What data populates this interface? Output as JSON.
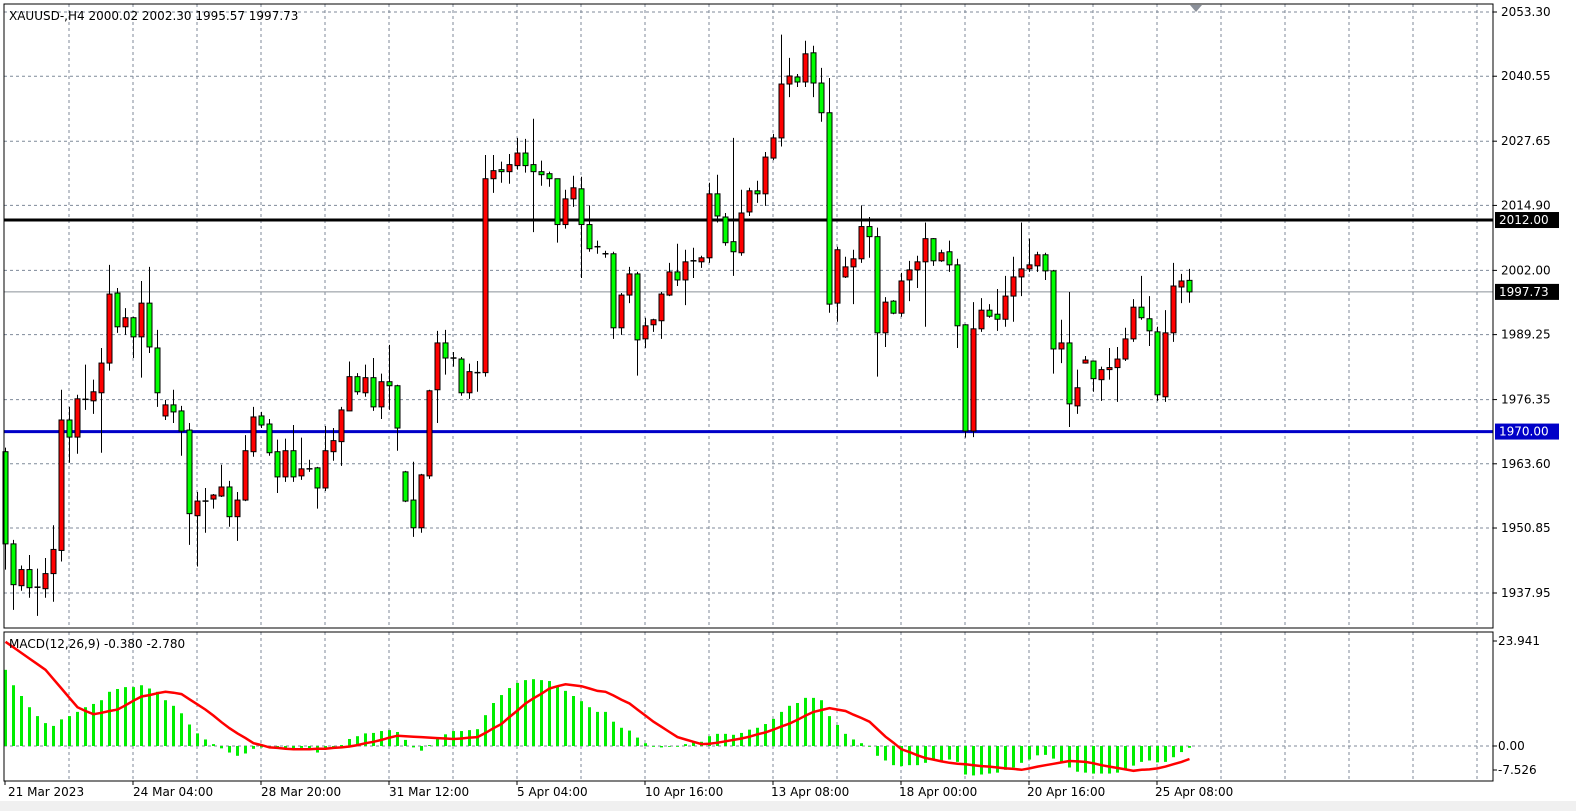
{
  "header": {
    "symbol_line": "XAUUSD-,H4  2000.02 2002.30 1995.57 1997.73"
  },
  "colors": {
    "bull_candle": "#ff0000",
    "bear_candle": "#00ff00",
    "support_line": "#0000c8",
    "resistance_line": "#000000",
    "macd_histogram": "#00ee00",
    "macd_signal": "#ff0000",
    "grid": "#7f8a99"
  },
  "chart_data": [
    {
      "type": "candlestick",
      "symbol": "XAUUSD-",
      "timeframe": "H4",
      "ohlc_header": {
        "open": 2000.02,
        "high": 2002.3,
        "low": 1995.57,
        "close": 1997.73
      },
      "ylim": [
        1934.0,
        2055.0
      ],
      "grid": true,
      "y_ticks": [
        "2053.30",
        "2040.55",
        "2027.65",
        "2014.90",
        "2002.00",
        "1989.25",
        "1976.35",
        "1963.60",
        "1950.85",
        "1937.95"
      ],
      "x_tick_labels": [
        "21 Mar 2023",
        "24 Mar 04:00",
        "28 Mar 20:00",
        "31 Mar 12:00",
        "5 Apr 04:00",
        "10 Apr 16:00",
        "13 Apr 08:00",
        "18 Apr 00:00",
        "20 Apr 16:00",
        "25 Apr 08:00"
      ],
      "horizontal_lines": [
        {
          "price": 2012.0,
          "label": "2012.00",
          "color": "#000000"
        },
        {
          "price": 1970.0,
          "label": "1970.00",
          "color": "#0000c8"
        }
      ],
      "current_price": {
        "price": 1997.73,
        "label": "1997.73"
      },
      "candles": [
        [
          1966.0,
          1966.8,
          1942.6,
          1947.7
        ],
        [
          1947.7,
          1948.5,
          1934.6,
          1939.6
        ],
        [
          1939.4,
          1943.4,
          1938.4,
          1942.6
        ],
        [
          1942.6,
          1945.5,
          1937.0,
          1939.0
        ],
        [
          1939.1,
          1942.8,
          1933.4,
          1939.0
        ],
        [
          1938.8,
          1944.9,
          1937.0,
          1941.8
        ],
        [
          1941.8,
          1951.4,
          1936.2,
          1946.6
        ],
        [
          1946.4,
          1978.3,
          1944.2,
          1972.3
        ],
        [
          1972.3,
          1974.9,
          1963.8,
          1968.9
        ],
        [
          1968.9,
          1977.3,
          1965.6,
          1976.5
        ],
        [
          1976.3,
          1983.3,
          1974.3,
          1976.4
        ],
        [
          1976.1,
          1980.3,
          1973.5,
          1977.9
        ],
        [
          1977.7,
          1986.6,
          1965.8,
          1983.6
        ],
        [
          1983.6,
          2003.1,
          1982.1,
          1997.3
        ],
        [
          1997.5,
          1998.5,
          1989.6,
          1990.8
        ],
        [
          1990.8,
          1994.5,
          1989.2,
          1992.6
        ],
        [
          1992.6,
          1992.8,
          1984.6,
          1988.8
        ],
        [
          1988.8,
          1999.9,
          1980.7,
          1995.5
        ],
        [
          1995.5,
          2002.7,
          1985.6,
          1986.8
        ],
        [
          1986.6,
          1990.2,
          1974.9,
          1977.7
        ],
        [
          1973.1,
          1976.3,
          1972.3,
          1975.3
        ],
        [
          1975.3,
          1978.3,
          1971.7,
          1973.9
        ],
        [
          1974.1,
          1975.1,
          1965.2,
          1970.1
        ],
        [
          1970.3,
          1971.7,
          1947.5,
          1953.7
        ],
        [
          1953.3,
          1958.0,
          1943.2,
          1956.2
        ],
        [
          1956.2,
          1958.8,
          1949.9,
          1956.1
        ],
        [
          1956.6,
          1957.6,
          1954.7,
          1957.4
        ],
        [
          1957.2,
          1963.4,
          1957.0,
          1959.0
        ],
        [
          1959.0,
          1960.2,
          1951.1,
          1953.1
        ],
        [
          1953.1,
          1958.0,
          1948.3,
          1956.4
        ],
        [
          1956.4,
          1969.3,
          1956.2,
          1966.2
        ],
        [
          1966.0,
          1974.9,
          1965.0,
          1972.9
        ],
        [
          1973.1,
          1973.9,
          1970.7,
          1971.3
        ],
        [
          1971.5,
          1972.5,
          1965.2,
          1965.8
        ],
        [
          1966.0,
          1968.4,
          1957.8,
          1961.0
        ],
        [
          1961.0,
          1968.6,
          1960.0,
          1966.2
        ],
        [
          1966.2,
          1971.3,
          1960.0,
          1961.0
        ],
        [
          1961.2,
          1968.8,
          1960.4,
          1962.6
        ],
        [
          1962.6,
          1964.4,
          1962.0,
          1962.5
        ],
        [
          1962.8,
          1963.0,
          1954.7,
          1958.8
        ],
        [
          1958.8,
          1971.1,
          1958.2,
          1966.2
        ],
        [
          1966.0,
          1970.7,
          1964.2,
          1968.2
        ],
        [
          1968.0,
          1974.9,
          1963.2,
          1974.3
        ],
        [
          1974.1,
          1983.9,
          1974.1,
          1980.9
        ],
        [
          1980.9,
          1981.6,
          1977.3,
          1977.9
        ],
        [
          1977.7,
          1983.3,
          1976.9,
          1980.7
        ],
        [
          1980.7,
          1984.6,
          1974.1,
          1974.9
        ],
        [
          1974.9,
          1981.5,
          1972.5,
          1979.9
        ],
        [
          1979.9,
          1987.2,
          1974.3,
          1979.1
        ],
        [
          1979.1,
          1979.3,
          1966.2,
          1970.7
        ],
        [
          1962.0,
          1962.2,
          1956.0,
          1956.2
        ],
        [
          1956.4,
          1964.0,
          1949.1,
          1950.9
        ],
        [
          1950.9,
          1961.6,
          1949.9,
          1961.4
        ],
        [
          1961.2,
          1978.3,
          1960.6,
          1978.1
        ],
        [
          1978.3,
          1990.0,
          1971.7,
          1987.6
        ],
        [
          1987.6,
          1990.2,
          1981.3,
          1984.6
        ],
        [
          1984.6,
          1985.8,
          1982.9,
          1984.5
        ],
        [
          1984.4,
          1984.8,
          1977.1,
          1977.7
        ],
        [
          1977.7,
          1983.5,
          1976.5,
          1981.9
        ],
        [
          1981.7,
          1984.0,
          1977.9,
          1981.6
        ],
        [
          1981.7,
          2024.9,
          1980.9,
          2020.2
        ],
        [
          2020.2,
          2024.9,
          2017.4,
          2021.8
        ],
        [
          2022.0,
          2023.6,
          2019.4,
          2021.6
        ],
        [
          2021.6,
          2025.1,
          2019.2,
          2023.0
        ],
        [
          2022.8,
          2028.3,
          2022.0,
          2025.3
        ],
        [
          2025.3,
          2028.1,
          2021.4,
          2022.8
        ],
        [
          2023.0,
          2032.1,
          2009.6,
          2021.6
        ],
        [
          2021.6,
          2023.8,
          2018.8,
          2021.0
        ],
        [
          2021.2,
          2021.6,
          2018.6,
          2020.2
        ],
        [
          2020.2,
          2020.2,
          2007.5,
          2011.1
        ],
        [
          2011.1,
          2018.0,
          2010.3,
          2016.2
        ],
        [
          2016.2,
          2020.8,
          2014.6,
          2018.4
        ],
        [
          2018.2,
          2020.6,
          2000.5,
          2011.1
        ],
        [
          2011.1,
          2014.9,
          2005.7,
          2006.3
        ],
        [
          2006.7,
          2007.9,
          2005.3,
          2006.6
        ],
        [
          2005.3,
          2005.9,
          2004.5,
          2005.2
        ],
        [
          2005.3,
          2005.7,
          1988.4,
          1990.6
        ],
        [
          1990.6,
          1997.5,
          1989.2,
          1997.1
        ],
        [
          1997.1,
          2002.7,
          1995.5,
          2001.3
        ],
        [
          2001.3,
          2001.7,
          1981.1,
          1988.2
        ],
        [
          1988.4,
          1992.6,
          1986.6,
          1991.0
        ],
        [
          1991.2,
          1992.4,
          1989.8,
          1992.2
        ],
        [
          1992.0,
          1997.7,
          1988.4,
          1997.3
        ],
        [
          1997.1,
          2003.5,
          1996.9,
          2001.7
        ],
        [
          2001.7,
          2007.3,
          1998.9,
          2000.1
        ],
        [
          2000.1,
          2006.1,
          1995.1,
          2003.7
        ],
        [
          2003.9,
          2006.5,
          2000.5,
          2003.8
        ],
        [
          2003.7,
          2004.9,
          2002.5,
          2004.5
        ],
        [
          2004.5,
          2019.4,
          2003.5,
          2017.2
        ],
        [
          2017.2,
          2021.0,
          2011.5,
          2012.8
        ],
        [
          2012.6,
          2013.4,
          2006.9,
          2007.5
        ],
        [
          2007.7,
          2028.3,
          2000.9,
          2005.7
        ],
        [
          2005.5,
          2018.0,
          2004.9,
          2013.4
        ],
        [
          2013.6,
          2018.4,
          2012.8,
          2017.8
        ],
        [
          2017.8,
          2019.8,
          2015.4,
          2017.2
        ],
        [
          2017.2,
          2025.5,
          2014.8,
          2024.5
        ],
        [
          2024.3,
          2029.1,
          2023.9,
          2028.3
        ],
        [
          2028.3,
          2048.8,
          2026.6,
          2039.0
        ],
        [
          2039.0,
          2044.2,
          2036.4,
          2040.6
        ],
        [
          2040.4,
          2041.0,
          2038.4,
          2039.4
        ],
        [
          2039.4,
          2047.6,
          2038.4,
          2045.0
        ],
        [
          2045.2,
          2046.6,
          2036.4,
          2039.2
        ],
        [
          2039.2,
          2042.2,
          2031.5,
          2033.3
        ],
        [
          2033.3,
          2040.2,
          1993.6,
          1995.3
        ],
        [
          1995.5,
          2006.7,
          1991.8,
          2006.1
        ],
        [
          2000.7,
          2004.7,
          2000.5,
          2002.7
        ],
        [
          2002.7,
          2006.1,
          1995.3,
          2004.3
        ],
        [
          2004.3,
          2014.9,
          2003.5,
          2010.7
        ],
        [
          2010.7,
          2012.6,
          2004.5,
          2008.7
        ],
        [
          2008.7,
          2010.5,
          1980.9,
          1989.6
        ],
        [
          1989.6,
          1996.7,
          1986.8,
          1995.7
        ],
        [
          1995.9,
          1996.1,
          1993.3,
          1993.5
        ],
        [
          1993.5,
          2001.5,
          1992.8,
          1999.9
        ],
        [
          2000.1,
          2003.9,
          1995.9,
          2002.1
        ],
        [
          2002.1,
          2004.9,
          1998.5,
          2003.7
        ],
        [
          2003.7,
          2011.5,
          1990.8,
          2008.3
        ],
        [
          2008.3,
          2008.4,
          2002.9,
          2003.9
        ],
        [
          2003.9,
          2006.1,
          2003.7,
          2005.5
        ],
        [
          2005.7,
          2007.9,
          2001.7,
          2003.1
        ],
        [
          2003.1,
          2004.3,
          1986.6,
          1991.0
        ],
        [
          1991.2,
          1991.3,
          1968.8,
          1970.1
        ],
        [
          1970.1,
          1995.7,
          1968.9,
          1990.4
        ],
        [
          1990.4,
          1996.5,
          1989.8,
          1994.1
        ],
        [
          1994.1,
          1995.3,
          1992.6,
          1992.9
        ],
        [
          1993.3,
          1998.3,
          1990.0,
          1992.3
        ],
        [
          1992.3,
          2000.9,
          1990.8,
          1996.9
        ],
        [
          1996.9,
          2004.7,
          1991.8,
          2000.7
        ],
        [
          2000.7,
          2011.5,
          1996.9,
          2002.3
        ],
        [
          2002.3,
          2008.3,
          2001.7,
          2003.1
        ],
        [
          2002.9,
          2005.7,
          2001.7,
          2005.1
        ],
        [
          2005.1,
          2005.5,
          2000.1,
          2001.9
        ],
        [
          2001.9,
          2002.1,
          1981.5,
          1986.4
        ],
        [
          1986.4,
          1992.2,
          1983.6,
          1987.6
        ],
        [
          1987.6,
          1997.7,
          1970.9,
          1975.5
        ],
        [
          1975.1,
          1982.3,
          1973.5,
          1978.7
        ],
        [
          1983.6,
          1985.0,
          1983.5,
          1984.2
        ],
        [
          1984.0,
          1984.1,
          1977.9,
          1980.5
        ],
        [
          1980.3,
          1982.9,
          1976.1,
          1982.3
        ],
        [
          1982.3,
          1986.6,
          1980.3,
          1982.7
        ],
        [
          1982.7,
          1986.8,
          1975.9,
          1984.4
        ],
        [
          1984.4,
          1990.6,
          1984.0,
          1988.4
        ],
        [
          1988.4,
          1996.3,
          1987.8,
          1994.7
        ],
        [
          1994.7,
          2000.9,
          1992.2,
          1992.6
        ],
        [
          1992.4,
          1996.9,
          1987.0,
          1990.0
        ],
        [
          1989.8,
          1990.8,
          1976.1,
          1977.3
        ],
        [
          1976.9,
          1994.1,
          1975.9,
          1989.6
        ],
        [
          1989.6,
          2003.5,
          1987.8,
          1998.9
        ],
        [
          1998.7,
          2001.3,
          1995.5,
          1999.9
        ],
        [
          2000.02,
          2002.3,
          1995.57,
          1997.73
        ]
      ]
    },
    {
      "type": "bar",
      "indicator": "MACD(12,26,9) -0.380 -2.780",
      "ylim": [
        -7.526,
        23.941
      ],
      "y_ticks": [
        "23.941",
        "0.00",
        "-7.526"
      ],
      "grid": true,
      "histogram": [
        16.3,
        13.0,
        10.7,
        8.3,
        6.4,
        4.9,
        4.3,
        5.7,
        6.4,
        7.3,
        8.3,
        9.0,
        9.8,
        11.6,
        12.2,
        12.6,
        12.6,
        13.0,
        12.3,
        11.6,
        9.8,
        8.6,
        7.0,
        4.6,
        2.7,
        1.4,
        0.4,
        -0.5,
        -1.4,
        -2.1,
        -1.6,
        -0.6,
        -0.3,
        -0.4,
        -0.6,
        -0.6,
        -0.6,
        -0.4,
        -0.6,
        -1.4,
        -0.6,
        -0.3,
        0.2,
        1.5,
        2.1,
        2.7,
        2.8,
        3.2,
        3.4,
        3.0,
        1.3,
        -0.3,
        -1.0,
        0.2,
        1.5,
        2.5,
        3.2,
        3.2,
        3.4,
        3.6,
        6.6,
        9.2,
        10.9,
        12.4,
        13.5,
        14.1,
        14.3,
        14.1,
        13.9,
        12.8,
        11.8,
        10.7,
        9.6,
        8.3,
        7.3,
        7.3,
        5.2,
        3.9,
        3.3,
        1.8,
        0.6,
        -0.1,
        -0.3,
        -0.1,
        -0.1,
        0.4,
        0.8,
        0.9,
        2.1,
        2.6,
        2.6,
        2.4,
        2.8,
        3.5,
        3.9,
        4.7,
        5.8,
        7.3,
        8.6,
        9.2,
        10.3,
        10.3,
        9.8,
        6.4,
        4.5,
        2.6,
        1.4,
        0.6,
        0.0,
        -2.1,
        -3.1,
        -4.1,
        -4.3,
        -4.1,
        -4.1,
        -3.6,
        -3.1,
        -3.1,
        -2.9,
        -3.4,
        -6.1,
        -6.3,
        -6.1,
        -5.9,
        -5.7,
        -5.1,
        -4.6,
        -3.6,
        -2.9,
        -2.0,
        -1.9,
        -2.7,
        -3.4,
        -4.6,
        -5.5,
        -5.7,
        -5.9,
        -5.9,
        -5.9,
        -5.7,
        -5.1,
        -4.2,
        -3.4,
        -3.1,
        -3.5,
        -3.4,
        -2.4,
        -1.3,
        -0.38
      ],
      "signal": [
        22.3,
        21.1,
        19.9,
        18.7,
        17.5,
        16.3,
        14.3,
        12.3,
        10.3,
        8.3,
        7.5,
        6.8,
        7.1,
        7.5,
        7.8,
        8.7,
        9.7,
        10.6,
        10.9,
        11.3,
        11.6,
        11.4,
        11.1,
        10.0,
        8.9,
        7.8,
        6.5,
        5.1,
        3.8,
        2.7,
        1.7,
        0.6,
        0.2,
        -0.3,
        -0.4,
        -0.6,
        -0.7,
        -0.7,
        -0.7,
        -0.6,
        -0.6,
        -0.4,
        -0.3,
        -0.1,
        0.2,
        0.6,
        0.9,
        1.3,
        1.8,
        2.2,
        2.1,
        2.0,
        1.9,
        1.8,
        1.7,
        1.6,
        1.5,
        1.6,
        1.8,
        1.9,
        2.8,
        3.8,
        4.7,
        6.2,
        7.6,
        9.1,
        10.2,
        11.2,
        12.3,
        12.8,
        13.2,
        13.0,
        12.8,
        12.3,
        11.8,
        11.6,
        10.8,
        9.9,
        9.1,
        7.8,
        6.5,
        5.2,
        4.1,
        3.0,
        1.9,
        1.4,
        0.9,
        0.4,
        0.5,
        0.7,
        1.0,
        1.3,
        1.6,
        2.0,
        2.5,
        2.9,
        3.5,
        4.2,
        4.8,
        5.6,
        6.5,
        7.3,
        7.7,
        8.1,
        7.8,
        7.5,
        6.7,
        6.0,
        5.2,
        3.6,
        2.0,
        0.7,
        -0.7,
        -1.3,
        -2.0,
        -2.6,
        -2.9,
        -3.3,
        -3.6,
        -3.8,
        -3.9,
        -4.1,
        -4.3,
        -4.4,
        -4.6,
        -4.8,
        -4.9,
        -5.1,
        -4.8,
        -4.4,
        -4.1,
        -3.8,
        -3.5,
        -3.2,
        -3.3,
        -3.4,
        -3.7,
        -4.1,
        -4.4,
        -4.7,
        -5.0,
        -5.3,
        -5.1,
        -5.0,
        -4.8,
        -4.4,
        -3.9,
        -3.4,
        -2.78
      ]
    }
  ]
}
